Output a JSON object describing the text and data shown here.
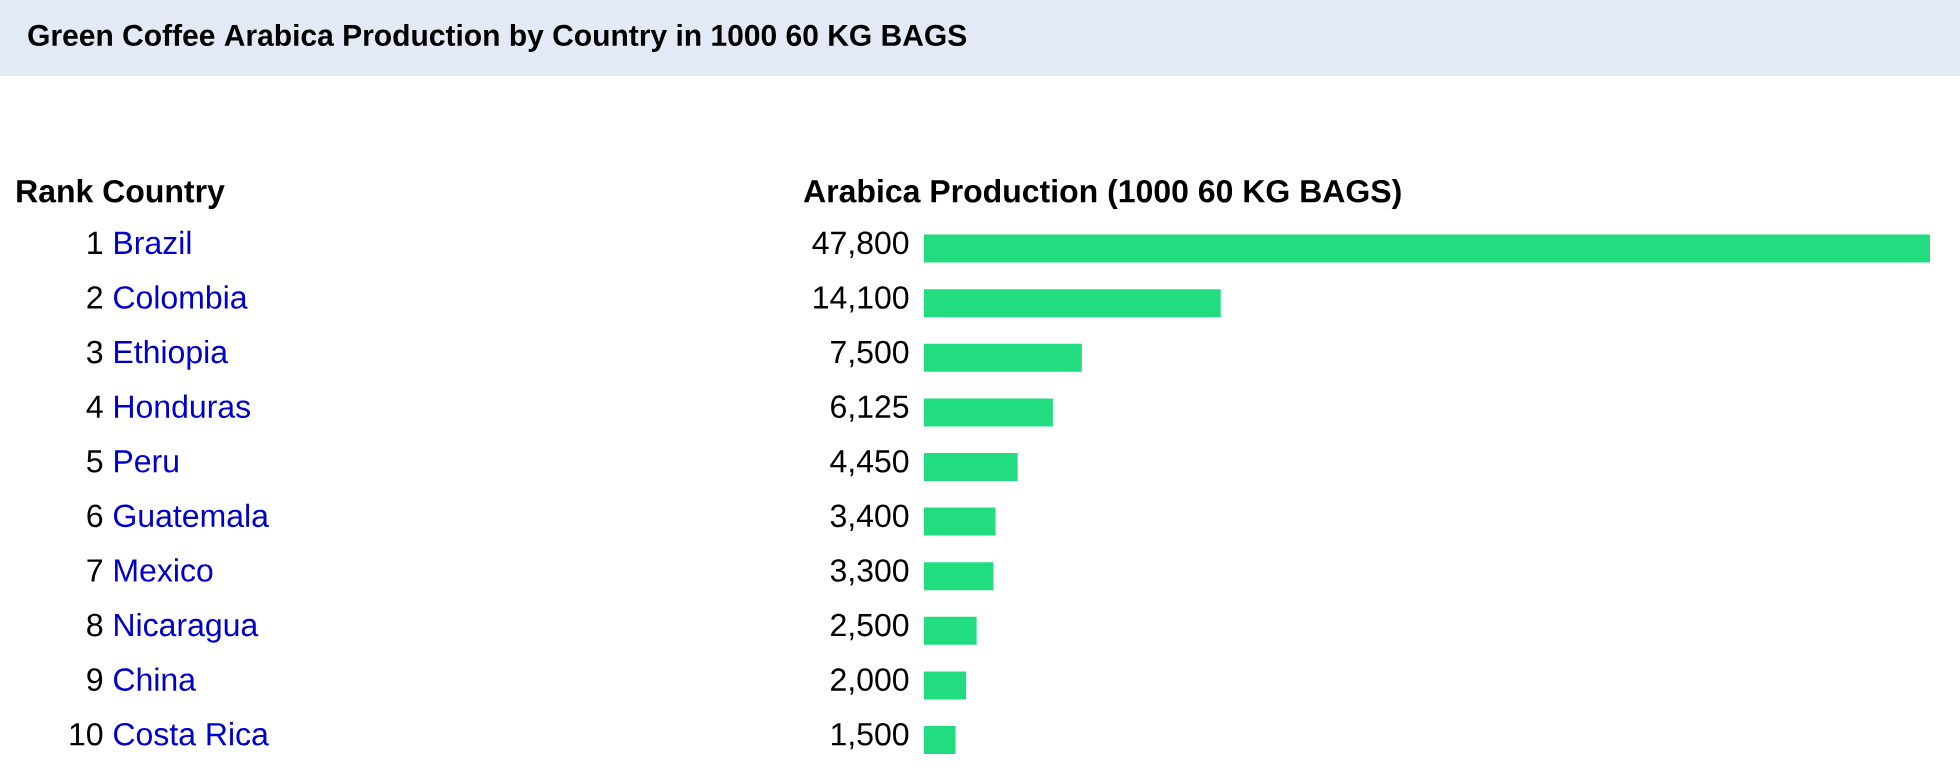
{
  "chart_data": {
    "type": "bar",
    "orientation": "horizontal",
    "title": "Green Coffee Arabica Production by Country in 1000 60 KG BAGS",
    "xlabel": "Arabica Production (1000 60 KG BAGS)",
    "ylabel": "Rank Country",
    "categories": [
      "Brazil",
      "Colombia",
      "Ethiopia",
      "Honduras",
      "Peru",
      "Guatemala",
      "Mexico",
      "Nicaragua",
      "China",
      "Costa Rica"
    ],
    "values": [
      47800,
      14100,
      7500,
      6125,
      4450,
      3400,
      3300,
      2500,
      2000,
      1500
    ],
    "color": "#22dd80",
    "value_labels": [
      "47,800",
      "14,100",
      "7,500",
      "6,125",
      "4,450",
      "3,400",
      "3,300",
      "2,500",
      "2,000",
      "1,500"
    ],
    "annotations": [
      "1",
      "2",
      "3",
      "4",
      "5",
      "6",
      "7",
      "8",
      "9",
      "10"
    ]
  }
}
